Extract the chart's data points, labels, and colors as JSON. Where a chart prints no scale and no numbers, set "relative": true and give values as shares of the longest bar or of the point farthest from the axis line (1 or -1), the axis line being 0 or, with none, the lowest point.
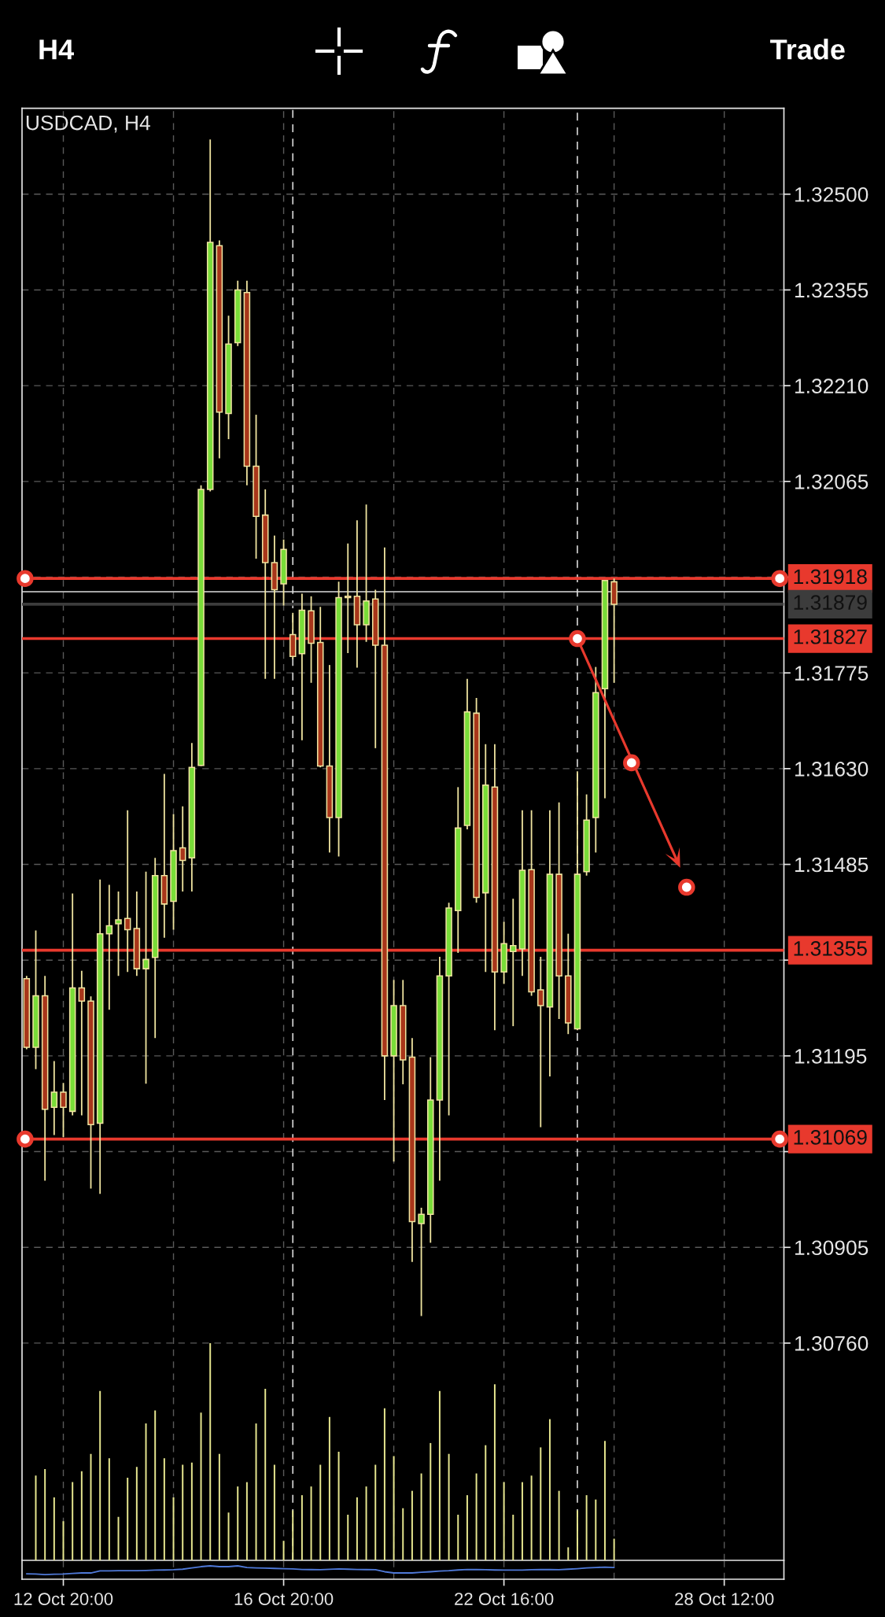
{
  "chart_data": [
    {
      "type": "candlestick",
      "title": "USDCAD, H4",
      "annotations": [
        "H4",
        "Trade"
      ],
      "categories": [
        null,
        null,
        null,
        null,
        null,
        null,
        null,
        null,
        null,
        null,
        null,
        null,
        null,
        null,
        null,
        null,
        null,
        null,
        null,
        null,
        null,
        null,
        null,
        null,
        null,
        null,
        null,
        null,
        null,
        null,
        null,
        null,
        null,
        null,
        null,
        null,
        null,
        null,
        null,
        null,
        null,
        null,
        null,
        null,
        null,
        null,
        null,
        null,
        null,
        null,
        null,
        null,
        null,
        null,
        null,
        null,
        null,
        null,
        null,
        null,
        null,
        null,
        null,
        null,
        null,
        null,
        null,
        null,
        null,
        null,
        null,
        null,
        null,
        null,
        null,
        null,
        null,
        null,
        null,
        null,
        null,
        null,
        null
      ],
      "ohlc": [
        [
          1.31312,
          1.31316,
          1.31205,
          1.31208
        ],
        [
          1.31208,
          1.31385,
          1.31175,
          1.31286
        ],
        [
          1.31286,
          1.31316,
          1.31006,
          1.31114
        ],
        [
          1.31117,
          1.31187,
          1.31075,
          1.3114
        ],
        [
          1.3114,
          1.31154,
          1.31072,
          1.31117
        ],
        [
          1.31111,
          1.31441,
          1.31105,
          1.31298
        ],
        [
          1.31298,
          1.31324,
          1.31105,
          1.31278
        ],
        [
          1.31278,
          1.31285,
          1.30994,
          1.31091
        ],
        [
          1.31093,
          1.31462,
          1.30986,
          1.3138
        ],
        [
          1.3138,
          1.31454,
          1.31265,
          1.31392
        ],
        [
          1.31395,
          1.31444,
          1.31316,
          1.31401
        ],
        [
          1.31403,
          1.31567,
          1.31322,
          1.31386
        ],
        [
          1.31388,
          1.31444,
          1.31316,
          1.31327
        ],
        [
          1.31327,
          1.31474,
          1.31153,
          1.31341
        ],
        [
          1.31344,
          1.31495,
          1.31222,
          1.31468
        ],
        [
          1.31468,
          1.31622,
          1.31374,
          1.31425
        ],
        [
          1.31429,
          1.31561,
          1.31386,
          1.31506
        ],
        [
          1.3151,
          1.31573,
          1.31444,
          1.31491
        ],
        [
          1.31495,
          1.31669,
          1.31444,
          1.31632
        ],
        [
          1.31635,
          1.32059,
          1.31634,
          1.32053
        ],
        [
          1.32053,
          1.32583,
          1.3205,
          1.32427
        ],
        [
          1.32422,
          1.3243,
          1.321,
          1.3217
        ],
        [
          1.32168,
          1.32316,
          1.32129,
          1.32273
        ],
        [
          1.32275,
          1.32369,
          1.3227,
          1.32355
        ],
        [
          1.32351,
          1.32369,
          1.32059,
          1.32088
        ],
        [
          1.32088,
          1.32166,
          1.31948,
          1.32012
        ],
        [
          1.32014,
          1.32053,
          1.31766,
          1.31942
        ],
        [
          1.31942,
          1.31983,
          1.31766,
          1.31901
        ],
        [
          1.3191,
          1.31977,
          1.31877,
          1.31962
        ],
        [
          1.31833,
          1.31866,
          1.31796,
          1.318
        ],
        [
          1.31804,
          1.31895,
          1.31673,
          1.3187
        ],
        [
          1.31869,
          1.31891,
          1.3176,
          1.3182
        ],
        [
          1.31821,
          1.31875,
          1.31632,
          1.31634
        ],
        [
          1.31634,
          1.31787,
          1.31503,
          1.31556
        ],
        [
          1.31556,
          1.31913,
          1.31497,
          1.31889
        ],
        [
          1.31891,
          1.31971,
          1.31805,
          1.31889
        ],
        [
          1.31891,
          1.32006,
          1.31783,
          1.31848
        ],
        [
          1.31848,
          1.3203,
          1.31822,
          1.31884
        ],
        [
          1.31887,
          1.31901,
          1.31661,
          1.31817
        ],
        [
          1.31817,
          1.31965,
          1.31128,
          1.31195
        ],
        [
          1.31195,
          1.3131,
          1.31035,
          1.31271
        ],
        [
          1.31271,
          1.3131,
          1.31152,
          1.31189
        ],
        [
          1.31193,
          1.31222,
          1.30883,
          1.30944
        ],
        [
          1.30941,
          1.30965,
          1.30801,
          1.30955
        ],
        [
          1.30955,
          1.31193,
          1.30912,
          1.31128
        ],
        [
          1.31128,
          1.31345,
          1.31006,
          1.31316
        ],
        [
          1.31316,
          1.31427,
          1.31105,
          1.31419
        ],
        [
          1.31415,
          1.31602,
          1.31351,
          1.3154
        ],
        [
          1.31544,
          1.31766,
          1.31538,
          1.31716
        ],
        [
          1.31714,
          1.31737,
          1.31427,
          1.31435
        ],
        [
          1.31442,
          1.31667,
          1.31322,
          1.31605
        ],
        [
          1.31602,
          1.31667,
          1.31234,
          1.31322
        ],
        [
          1.31322,
          1.31398,
          1.31304,
          1.31365
        ],
        [
          1.31353,
          1.31433,
          1.3124,
          1.31362
        ],
        [
          1.31357,
          1.31567,
          1.31316,
          1.31476
        ],
        [
          1.31477,
          1.31567,
          1.31286,
          1.31292
        ],
        [
          1.31295,
          1.31345,
          1.31087,
          1.31271
        ],
        [
          1.31269,
          1.31567,
          1.31164,
          1.3147
        ],
        [
          1.3147,
          1.31579,
          1.31251,
          1.31316
        ],
        [
          1.31316,
          1.3138,
          1.31228,
          1.31245
        ],
        [
          1.31236,
          1.31626,
          1.31234,
          1.3147
        ],
        [
          1.31474,
          1.31591,
          1.31468,
          1.31552
        ],
        [
          1.31556,
          1.31784,
          1.31503,
          1.31745
        ],
        [
          1.31751,
          1.31915,
          1.31585,
          1.31915
        ],
        [
          1.31913,
          1.31918,
          1.3176,
          1.31879
        ],
        null,
        null,
        null,
        null,
        null,
        null,
        null,
        null,
        null,
        null,
        null,
        null,
        null,
        null,
        null,
        null,
        null,
        null
      ],
      "colors": [
        "#a8361a",
        "#79dc38",
        "#a8361a",
        "#79dc38",
        "#a8361a",
        "#79dc38",
        "#a8361a",
        "#a8361a",
        "#79dc38",
        "#79dc38",
        "#79dc38",
        "#a8361a",
        "#a8361a",
        "#79dc38",
        "#79dc38",
        "#a8361a",
        "#79dc38",
        "#a8361a",
        "#79dc38",
        "#79dc38",
        "#79dc38",
        "#a8361a",
        "#79dc38",
        "#79dc38",
        "#a8361a",
        "#a8361a",
        "#a8361a",
        "#a8361a",
        "#79dc38",
        "#a8361a",
        "#79dc38",
        "#a8361a",
        "#a8361a",
        "#a8361a",
        "#79dc38",
        "#a8361a",
        "#a8361a",
        "#79dc38",
        "#a8361a",
        "#a8361a",
        "#79dc38",
        "#a8361a",
        "#a8361a",
        "#79dc38",
        "#79dc38",
        "#79dc38",
        "#79dc38",
        "#79dc38",
        "#79dc38",
        "#a8361a",
        "#79dc38",
        "#a8361a",
        "#79dc38",
        "#79dc38",
        "#79dc38",
        "#a8361a",
        "#a8361a",
        "#79dc38",
        "#a8361a",
        "#a8361a",
        "#79dc38",
        "#79dc38",
        "#79dc38",
        "#79dc38",
        "#a8361a",
        null,
        null,
        null,
        null,
        null,
        null,
        null,
        null,
        null,
        null,
        null,
        null,
        null,
        null,
        null,
        null,
        null,
        null
      ],
      "ylim": [
        1.30431,
        1.3263
      ],
      "yticks": [
        {
          "value": 1.325,
          "label": "1.32500"
        },
        {
          "value": 1.32355,
          "label": "1.32355"
        },
        {
          "value": 1.3221,
          "label": "1.32210"
        },
        {
          "value": 1.32065,
          "label": "1.32065"
        },
        {
          "value": 1.3192,
          "label": null
        },
        {
          "value": 1.31775,
          "label": "1.31775"
        },
        {
          "value": 1.3163,
          "label": "1.31630"
        },
        {
          "value": 1.31485,
          "label": "1.31485"
        },
        {
          "value": 1.3134,
          "label": null
        },
        {
          "value": 1.31195,
          "label": "1.31195"
        },
        {
          "value": 1.3105,
          "label": null
        },
        {
          "value": 1.30905,
          "label": "1.30905"
        },
        {
          "value": 1.3076,
          "label": "1.30760"
        }
      ],
      "grid": true,
      "tick_labels": "y",
      "ref_lines": [
        {
          "axis": "y",
          "value": 1.31918,
          "label": "1.31918",
          "color": "#e8392d"
        },
        {
          "axis": "y",
          "value": 1.31898,
          "color": "#dcdcdc"
        },
        {
          "axis": "y",
          "value": 1.31879,
          "label": "1.31879",
          "color": "#3c3c3c"
        },
        {
          "axis": "y",
          "value": 1.31827,
          "label": "1.31827",
          "color": "#e8392d"
        },
        {
          "axis": "y",
          "value": 1.31355,
          "label": "1.31355",
          "color": "#e8392d"
        },
        {
          "axis": "y",
          "value": 1.31069,
          "label": "1.31069",
          "color": "#e8392d"
        }
      ]
    },
    {
      "type": "bar",
      "relative": true,
      "tick_labels": false,
      "categories": [
        null,
        null,
        null,
        null,
        null,
        null,
        null,
        null,
        null,
        null,
        null,
        null,
        null,
        null,
        null,
        null,
        null,
        null,
        null,
        null,
        null,
        null,
        null,
        null,
        null,
        null,
        null,
        null,
        null,
        null,
        null,
        null,
        null,
        null,
        null,
        null,
        null,
        null,
        null,
        null,
        null,
        null,
        null,
        null,
        null,
        null,
        null,
        null,
        null,
        null,
        null,
        null,
        null,
        null,
        null,
        null,
        null,
        null,
        null,
        null,
        null,
        null,
        null,
        null,
        null,
        null,
        null,
        null,
        null,
        null,
        null,
        null,
        null,
        null,
        null,
        null,
        null,
        null,
        null,
        null,
        null,
        null,
        null
      ],
      "series": [
        {
          "color": "#e6e68f",
          "values": [
            null,
            0.39,
            0.42,
            0.29,
            0.18,
            0.36,
            0.41,
            0.49,
            0.78,
            0.47,
            0.2,
            0.38,
            0.43,
            0.63,
            0.69,
            0.47,
            0.29,
            0.44,
            0.45,
            0.68,
            1,
            0.49,
            0.22,
            0.34,
            0.36,
            0.63,
            0.79,
            0.44,
            0.09,
            0.23,
            0.3,
            0.34,
            0.44,
            0.66,
            0.5,
            0.21,
            0.29,
            0.34,
            0.44,
            0.7,
            0.48,
            0.24,
            0.32,
            0.4,
            0.54,
            0.78,
            0.49,
            0.21,
            0.3,
            0.4,
            0.53,
            0.81,
            0.36,
            0.21,
            0.36,
            0.39,
            0.52,
            0.65,
            0.32,
            0.06,
            0.23,
            0.3,
            0.28,
            0.55,
            0.1,
            null,
            null,
            null,
            null,
            null,
            null,
            null,
            null,
            null,
            null,
            null,
            null,
            null,
            null,
            null,
            null,
            null,
            null
          ]
        }
      ]
    },
    {
      "type": "line",
      "relative": true,
      "tick_labels": "x",
      "grid": "x",
      "categories": [
        null,
        null,
        null,
        null,
        "12 Oct 20:00",
        null,
        null,
        null,
        null,
        null,
        null,
        null,
        null,
        null,
        null,
        null,
        null,
        null,
        null,
        null,
        null,
        null,
        null,
        null,
        null,
        null,
        null,
        null,
        "16 Oct 20:00",
        null,
        null,
        null,
        null,
        null,
        null,
        null,
        null,
        null,
        null,
        null,
        null,
        null,
        null,
        null,
        null,
        null,
        null,
        null,
        null,
        null,
        null,
        null,
        "22 Oct 16:00",
        null,
        null,
        null,
        null,
        null,
        null,
        null,
        null,
        null,
        null,
        null,
        null,
        null,
        null,
        null,
        null,
        null,
        null,
        null,
        null,
        null,
        null,
        null,
        "28 Oct 12:00",
        null,
        null,
        null,
        null,
        null,
        null
      ],
      "series": [
        {
          "color": "#4f79d8",
          "values": [
            0.41,
            0.39,
            0.35,
            0.37,
            0.39,
            0.43,
            0.47,
            0.47,
            0.62,
            0.63,
            0.64,
            0.64,
            0.64,
            0.66,
            0.68,
            0.69,
            0.71,
            0.75,
            0.84,
            0.94,
            1,
            0.94,
            0.94,
            1,
            0.88,
            0.85,
            0.83,
            0.81,
            0.79,
            0.77,
            0.73,
            0.72,
            0.71,
            0.74,
            0.77,
            0.75,
            0.73,
            0.72,
            0.71,
            0.56,
            0.47,
            0.47,
            0.47,
            0.52,
            0.56,
            0.61,
            0.64,
            0.69,
            0.73,
            0.72,
            0.71,
            0.69,
            0.68,
            0.68,
            0.68,
            0.71,
            0.73,
            0.72,
            0.71,
            0.75,
            0.79,
            0.84,
            0.88,
            0.91,
            0.88,
            null,
            null,
            null,
            null,
            null,
            null,
            null,
            null,
            null,
            null,
            null,
            null,
            null,
            null,
            null,
            null,
            null,
            null
          ]
        }
      ]
    }
  ]
}
